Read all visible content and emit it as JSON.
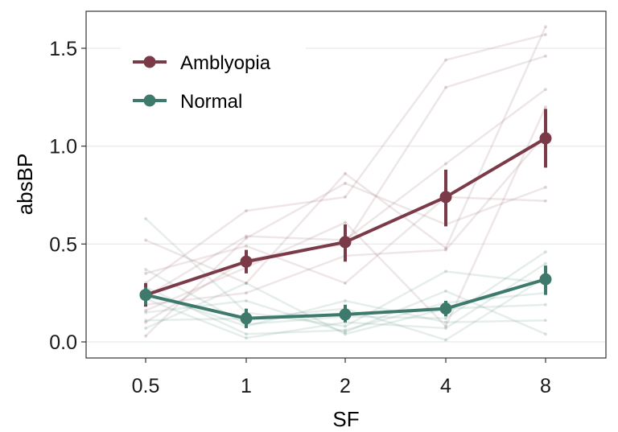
{
  "chart_data": {
    "type": "line",
    "title": "",
    "xlabel": "SF",
    "ylabel": "absBP",
    "categories": [
      "0.5",
      "1",
      "2",
      "4",
      "8"
    ],
    "y_ticks": [
      "0.0",
      "0.5",
      "1.0",
      "1.5"
    ],
    "ylim": [
      -0.08,
      1.68
    ],
    "grid": "horizontal",
    "legend_position": "top-left",
    "series": [
      {
        "name": "Amblyopia",
        "color": "#7B3A48",
        "values": [
          0.24,
          0.41,
          0.51,
          0.74,
          1.04
        ],
        "error_low": [
          0.18,
          0.35,
          0.41,
          0.59,
          0.89
        ],
        "error_high": [
          0.3,
          0.47,
          0.6,
          0.88,
          1.19
        ]
      },
      {
        "name": "Normal",
        "color": "#3E7A6C",
        "values": [
          0.24,
          0.12,
          0.14,
          0.17,
          0.32
        ],
        "error_low": [
          0.19,
          0.07,
          0.1,
          0.13,
          0.24
        ],
        "error_high": [
          0.28,
          0.17,
          0.19,
          0.21,
          0.39
        ]
      }
    ],
    "individual_lines": {
      "Amblyopia": [
        [
          0.52,
          0.3,
          0.86,
          0.48,
          1.61
        ],
        [
          0.3,
          0.67,
          0.74,
          1.44,
          1.57
        ],
        [
          0.23,
          0.54,
          0.52,
          0.91,
          1.29
        ],
        [
          0.1,
          0.42,
          0.5,
          1.3,
          1.46
        ],
        [
          0.03,
          0.53,
          0.81,
          0.6,
          0.79
        ],
        [
          0.35,
          0.49,
          0.3,
          0.74,
          0.72
        ],
        [
          0.19,
          0.25,
          0.44,
          0.47,
          1.06
        ],
        [
          0.16,
          0.38,
          0.61,
          0.08,
          1.2
        ]
      ],
      "Normal": [
        [
          0.63,
          0.15,
          0.08,
          0.36,
          0.3
        ],
        [
          0.37,
          0.09,
          0.13,
          0.12,
          0.46
        ],
        [
          0.28,
          0.04,
          0.06,
          0.2,
          0.25
        ],
        [
          0.22,
          0.02,
          0.1,
          0.07,
          0.4
        ],
        [
          0.15,
          0.21,
          0.05,
          0.26,
          0.04
        ],
        [
          0.11,
          0.12,
          0.17,
          0.01,
          0.33
        ],
        [
          0.07,
          0.3,
          0.04,
          0.17,
          0.19
        ],
        [
          0.25,
          0.08,
          0.21,
          0.1,
          0.11
        ]
      ]
    }
  }
}
